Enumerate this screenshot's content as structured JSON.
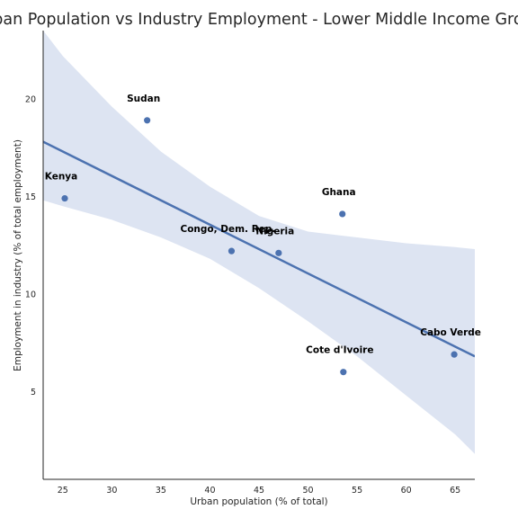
{
  "chart_data": {
    "type": "scatter",
    "title": "Urban Population vs Industry Employment - Lower Middle Income Group",
    "xlabel": "Urban population (% of total)",
    "ylabel": "Employment in industry (% of total employment)",
    "xlim": [
      23,
      67
    ],
    "ylim": [
      0.5,
      23.5
    ],
    "xticks": [
      25,
      30,
      35,
      40,
      45,
      50,
      55,
      60,
      65
    ],
    "yticks": [
      5,
      10,
      15,
      20
    ],
    "grid": false,
    "points": [
      {
        "label": "Kenya",
        "x": 25.2,
        "y": 14.9
      },
      {
        "label": "Sudan",
        "x": 33.6,
        "y": 18.9
      },
      {
        "label": "Congo, Dem. Rep.",
        "x": 42.2,
        "y": 12.2
      },
      {
        "label": "Nigeria",
        "x": 47.0,
        "y": 12.1
      },
      {
        "label": "Ghana",
        "x": 53.5,
        "y": 14.1
      },
      {
        "label": "Cote d'Ivoire",
        "x": 53.6,
        "y": 6.0
      },
      {
        "label": "Cabo Verde",
        "x": 64.9,
        "y": 6.9
      }
    ],
    "regression": {
      "x": [
        23,
        67
      ],
      "y": [
        17.8,
        6.8
      ]
    },
    "confidence_band": {
      "x": [
        23,
        25,
        30,
        35,
        40,
        45,
        50,
        55,
        60,
        65,
        67
      ],
      "upper": [
        23.5,
        22.2,
        19.6,
        17.3,
        15.5,
        14.0,
        13.2,
        12.9,
        12.6,
        12.4,
        12.3
      ],
      "lower": [
        14.8,
        14.5,
        13.8,
        12.9,
        11.8,
        10.3,
        8.6,
        6.8,
        4.8,
        2.8,
        1.8
      ]
    },
    "colors": {
      "point": "#4c72b0",
      "line": "#4c72b0",
      "band": "#dde4f2"
    }
  }
}
